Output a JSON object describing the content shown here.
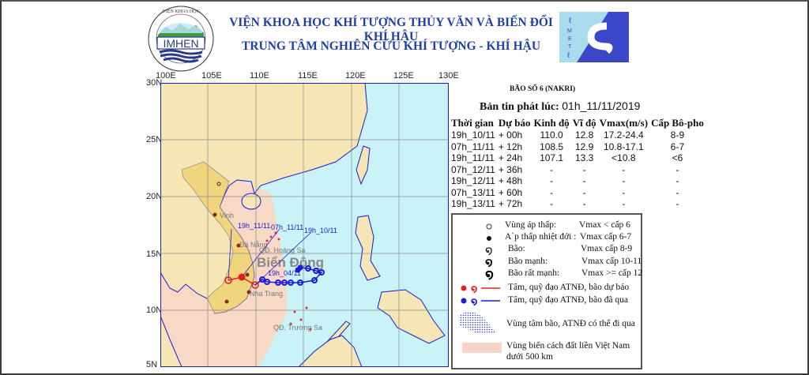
{
  "header": {
    "institute": "VIỆN KHOA HỌC KHÍ TƯỢNG THỦY VĂN VÀ BIẾN ĐỔI KHÍ HẬU",
    "center": "TRUNG TÂM NGHIÊN CỨU KHÍ TƯỢNG - KHÍ HẬU",
    "logo_left": "IMHEN - VIỆN KHOA HỌC KHÍ TƯỢNG THỦY VĂN VÀ BIẾN ĐỔI KHÍ HẬU",
    "logo_right": "CMETC"
  },
  "map": {
    "lon_labels": [
      "100E",
      "105E",
      "110E",
      "115E",
      "120E",
      "125E",
      "130E"
    ],
    "lat_labels": [
      "30N",
      "25N",
      "20N",
      "15N",
      "10N",
      "5N"
    ],
    "place_labels": {
      "sea": "Biển Đông",
      "vinh": "Vinh",
      "danang": "Đà Nẵng",
      "hoangsa": "QĐ. Hoàng Sa",
      "nhatrang": "Nha Trang",
      "truongsa": "QĐ. Trường Sa"
    },
    "track_labels": [
      "19h_11/11",
      "07h_11/11",
      "19h_10/11",
      "19h_04/11"
    ],
    "colors": {
      "land": "#f6e6b6",
      "vietnam": "#f1d57e",
      "sea": "#c9f3f7",
      "zone500": "#f7d9c6",
      "forecast": "#e0201e",
      "past": "#1a1ad8"
    }
  },
  "storm": {
    "name": "BÃO SỐ 6 (NAKRI)",
    "issue_label": "Bản tin phát lúc:",
    "issue_time": "01h_11/11/2019"
  },
  "forecast_table": {
    "headers": [
      "Thời gian",
      "Dự báo",
      "Kinh độ",
      "Vĩ độ",
      "Vmax(m/s)",
      "Cấp Bô-pho"
    ],
    "rows": [
      [
        "19h_10/11",
        "+ 00h",
        "110.0",
        "12.8",
        "17.2-24.4",
        "8-9"
      ],
      [
        "07h_11/11",
        "+ 12h",
        "108.5",
        "12.9",
        "10.8-17.1",
        "6-7"
      ],
      [
        "19h_11/11",
        "+ 24h",
        "107.1",
        "13.3",
        "<10.8",
        "<6"
      ],
      [
        "07h_12/11",
        "+ 36h",
        "-",
        "-",
        "-",
        "-"
      ],
      [
        "19h_12/11",
        "+ 48h",
        "-",
        "-",
        "-",
        "-"
      ],
      [
        "07h_13/11",
        "+ 60h",
        "-",
        "-",
        "-",
        "-"
      ],
      [
        "19h_13/11",
        "+ 72h",
        "-",
        "-",
        "-",
        "-"
      ]
    ]
  },
  "legend": {
    "low": {
      "label": "Vùng áp thấp:",
      "value": "Vmax < cấp 6"
    },
    "td": {
      "label": "A`p thấp nhiệt đới :",
      "value": "Vmax cấp 6-7"
    },
    "ts": {
      "label": "Bão:",
      "value": "Vmax cấp 8-9"
    },
    "sts": {
      "label": "Bão mạnh:",
      "value": "Vmax cấp 10-11"
    },
    "ty": {
      "label": "Bão rất mạnh:",
      "value": "Vmax >= cấp 12"
    },
    "forecast": "Tâm, quỹ đạo ATNĐ, bão dự báo",
    "past": "Tâm, quỹ đạo ATNĐ, bão đã qua",
    "cone": "Vùng tâm bão, ATNĐ có thể đi qua",
    "zone_line1": "Vùng biển cách đất liền Việt Nam",
    "zone_line2": "dưới 500 km"
  }
}
